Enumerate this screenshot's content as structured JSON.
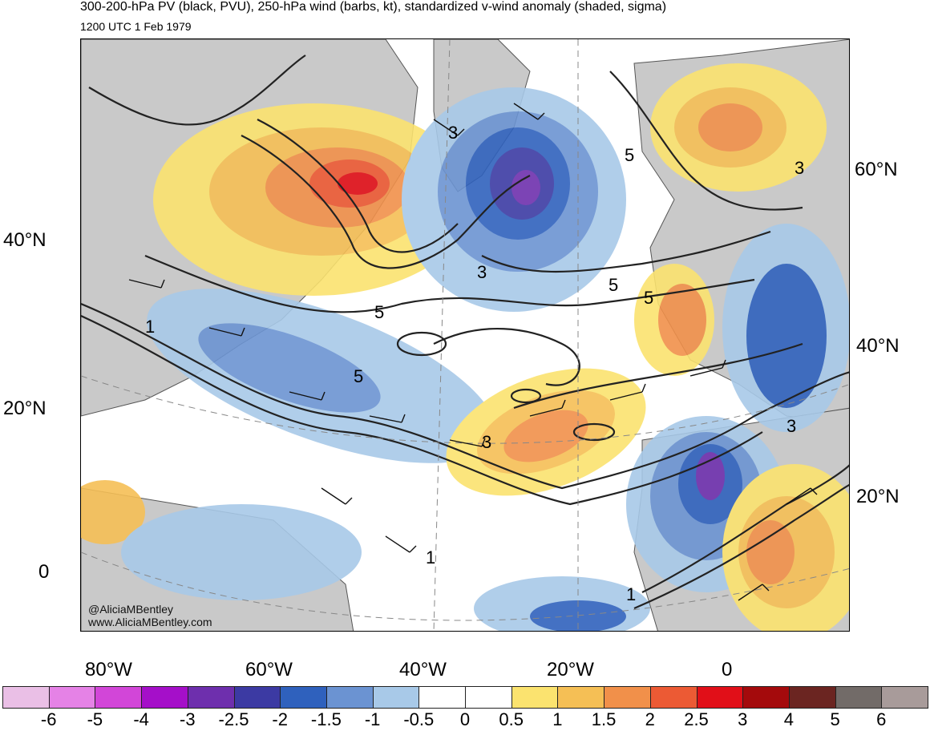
{
  "title": "300-200-hPa PV (black, PVU), 250-hPa wind (barbs, kt), standardized v-wind anomaly (shaded, sigma)",
  "subtitle": "1200 UTC 1 Feb 1979",
  "credit": [
    "@AliciaMBentley",
    "www.AliciaMBentley.com"
  ],
  "axes": {
    "left_lat": [
      "40°N",
      "20°N",
      "0"
    ],
    "right_lat": [
      "60°N",
      "40°N",
      "20°N"
    ],
    "bottom_lon": [
      "80°W",
      "60°W",
      "40°W",
      "20°W",
      "0"
    ]
  },
  "contour_labels": [
    "5",
    "5",
    "3",
    "3",
    "5",
    "5",
    "3",
    "3",
    "5",
    "3",
    "1",
    "1",
    "1"
  ],
  "colorbar": {
    "labels": [
      "-6",
      "-5",
      "-4",
      "-3",
      "-2.5",
      "-2",
      "-1.5",
      "-1",
      "-0.5",
      "0",
      "0.5",
      "1",
      "1.5",
      "2",
      "2.5",
      "3",
      "4",
      "5",
      "6"
    ],
    "colors": [
      "#eabfe6",
      "#e582e6",
      "#d246d8",
      "#a50fc9",
      "#6e2fad",
      "#3c3aa3",
      "#2f61bd",
      "#6b93d2",
      "#a8c9e8",
      "#ffffff",
      "#ffffff",
      "#fbe36f",
      "#f5bf55",
      "#f1904a",
      "#ec5a34",
      "#e10f18",
      "#a40a0c",
      "#6b2521",
      "#726b68",
      "#a89b9a"
    ]
  },
  "colors": {
    "land": "#c9c9c9",
    "contour": "#222222"
  }
}
